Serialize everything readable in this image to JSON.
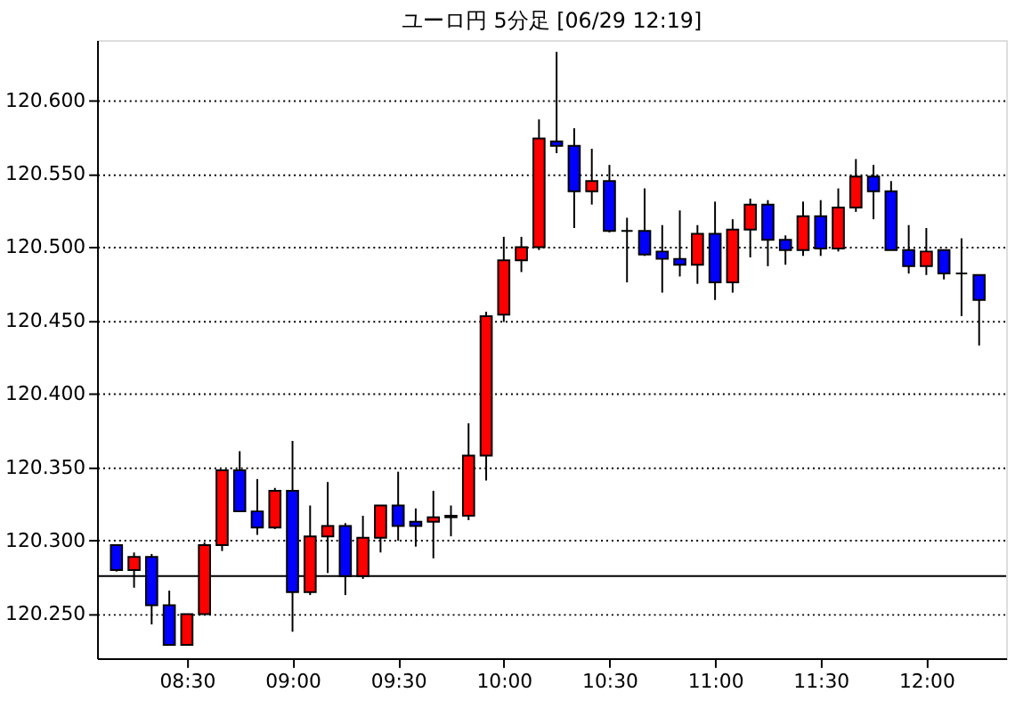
{
  "chart_data": {
    "type": "candlestick",
    "title": "ユーロ円 5分足 [06/29 12:19]",
    "x": [
      8.1667,
      8.25,
      8.3333,
      8.4167,
      8.5,
      8.5833,
      8.6667,
      8.75,
      8.8333,
      8.9167,
      9.0,
      9.0833,
      9.1667,
      9.25,
      9.3333,
      9.4167,
      9.5,
      9.5833,
      9.6667,
      9.75,
      9.8333,
      9.9167,
      10.0,
      10.0833,
      10.1667,
      10.25,
      10.3333,
      10.4167,
      10.5,
      10.5833,
      10.6667,
      10.75,
      10.8333,
      10.9167,
      11.0,
      11.0833,
      11.1667,
      11.25,
      11.3333,
      11.4167,
      11.5,
      11.5833,
      11.6667,
      11.75,
      11.8333,
      11.9167,
      12.0,
      12.0833,
      12.1667,
      12.25
    ],
    "ohlc": [
      [
        120.297,
        120.297,
        120.279,
        120.28
      ],
      [
        120.28,
        120.292,
        120.268,
        120.289
      ],
      [
        120.289,
        120.291,
        120.243,
        120.256
      ],
      [
        120.256,
        120.266,
        120.229,
        120.229
      ],
      [
        120.229,
        120.25,
        120.229,
        120.25
      ],
      [
        120.25,
        120.299,
        120.25,
        120.297
      ],
      [
        120.297,
        120.348,
        120.293,
        120.348
      ],
      [
        120.348,
        120.361,
        120.32,
        120.32
      ],
      [
        120.32,
        120.342,
        120.304,
        120.309
      ],
      [
        120.309,
        120.336,
        120.308,
        120.334
      ],
      [
        120.334,
        120.368,
        120.238,
        120.265
      ],
      [
        120.265,
        120.324,
        120.263,
        120.303
      ],
      [
        120.303,
        120.34,
        120.278,
        120.31
      ],
      [
        120.31,
        120.312,
        120.263,
        120.276
      ],
      [
        120.276,
        120.317,
        120.274,
        120.302
      ],
      [
        120.302,
        120.324,
        120.292,
        120.324
      ],
      [
        120.324,
        120.347,
        120.3,
        120.31
      ],
      [
        120.313,
        120.322,
        120.296,
        120.31
      ],
      [
        120.313,
        120.334,
        120.288,
        120.316
      ],
      [
        120.317,
        120.324,
        120.303,
        120.316
      ],
      [
        120.317,
        120.38,
        120.314,
        120.358
      ],
      [
        120.358,
        120.456,
        120.341,
        120.453
      ],
      [
        120.454,
        120.507,
        120.449,
        120.491
      ],
      [
        120.491,
        120.507,
        120.483,
        120.5
      ],
      [
        120.5,
        120.587,
        120.498,
        120.574
      ],
      [
        120.572,
        120.633,
        120.564,
        120.569
      ],
      [
        120.569,
        120.581,
        120.513,
        120.538
      ],
      [
        120.538,
        120.567,
        120.529,
        120.545
      ],
      [
        120.545,
        120.556,
        120.51,
        120.511
      ],
      [
        120.511,
        120.52,
        120.476,
        120.511
      ],
      [
        120.511,
        120.54,
        120.494,
        120.495
      ],
      [
        120.497,
        120.515,
        120.469,
        120.492
      ],
      [
        120.492,
        120.525,
        120.48,
        120.488
      ],
      [
        120.488,
        120.515,
        120.475,
        120.509
      ],
      [
        120.509,
        120.531,
        120.464,
        120.476
      ],
      [
        120.476,
        120.519,
        120.469,
        120.512
      ],
      [
        120.512,
        120.533,
        120.493,
        120.529
      ],
      [
        120.529,
        120.532,
        120.487,
        120.505
      ],
      [
        120.505,
        120.508,
        120.488,
        120.498
      ],
      [
        120.498,
        120.531,
        120.494,
        120.521
      ],
      [
        120.521,
        120.532,
        120.494,
        120.499
      ],
      [
        120.499,
        120.54,
        120.497,
        120.527
      ],
      [
        120.527,
        120.56,
        120.524,
        120.548
      ],
      [
        120.548,
        120.556,
        120.519,
        120.538
      ],
      [
        120.538,
        120.545,
        120.498,
        120.498
      ],
      [
        120.498,
        120.515,
        120.482,
        120.487
      ],
      [
        120.487,
        120.513,
        120.481,
        120.497
      ],
      [
        120.498,
        120.498,
        120.478,
        120.482
      ],
      [
        120.482,
        120.506,
        120.453,
        120.482
      ],
      [
        120.481,
        120.481,
        120.433,
        120.464
      ]
    ],
    "colors": [
      "#0000ff",
      "#ff0000",
      "#0000ff",
      "#0000ff",
      "#ff0000",
      "#ff0000",
      "#ff0000",
      "#0000ff",
      "#0000ff",
      "#ff0000",
      "#0000ff",
      "#ff0000",
      "#ff0000",
      "#0000ff",
      "#ff0000",
      "#ff0000",
      "#0000ff",
      "#0000ff",
      "#ff0000",
      "#0000ff",
      "#ff0000",
      "#ff0000",
      "#ff0000",
      "#ff0000",
      "#ff0000",
      "#0000ff",
      "#0000ff",
      "#ff0000",
      "#0000ff",
      "#000000",
      "#0000ff",
      "#0000ff",
      "#0000ff",
      "#ff0000",
      "#0000ff",
      "#ff0000",
      "#ff0000",
      "#0000ff",
      "#0000ff",
      "#ff0000",
      "#0000ff",
      "#ff0000",
      "#ff0000",
      "#0000ff",
      "#0000ff",
      "#0000ff",
      "#ff0000",
      "#0000ff",
      "#000000",
      "#0000ff"
    ],
    "xlim": [
      8.075,
      12.378
    ],
    "xticks": [
      {
        "value": 8.5,
        "label": "08:30"
      },
      {
        "value": 9.0,
        "label": "09:00"
      },
      {
        "value": 9.5,
        "label": "09:30"
      },
      {
        "value": 10.0,
        "label": "10:00"
      },
      {
        "value": 10.5,
        "label": "10:30"
      },
      {
        "value": 11.0,
        "label": "11:00"
      },
      {
        "value": 11.5,
        "label": "11:30"
      },
      {
        "value": 12.0,
        "label": "12:00"
      }
    ],
    "ylim": [
      120.22,
      120.641
    ],
    "yticks": [
      {
        "value": 120.25,
        "label": "120.250"
      },
      {
        "value": 120.3,
        "label": "120.300"
      },
      {
        "value": 120.35,
        "label": "120.350"
      },
      {
        "value": 120.4,
        "label": "120.400"
      },
      {
        "value": 120.45,
        "label": "120.450"
      },
      {
        "value": 120.5,
        "label": "120.500"
      },
      {
        "value": 120.55,
        "label": "120.550"
      },
      {
        "value": 120.6,
        "label": "120.600"
      }
    ],
    "grid": "y",
    "ref_lines": [
      {
        "axis": "y",
        "value": 120.276,
        "color": "#000000",
        "line_style": "solid"
      }
    ]
  }
}
